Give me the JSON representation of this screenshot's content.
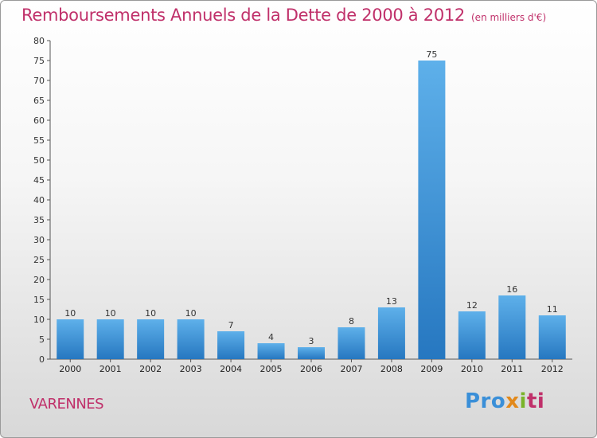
{
  "chart_data": {
    "type": "bar",
    "title": "Remboursements Annuels de la Dette de 2000 à 2012",
    "subtitle": "(en milliers d'€)",
    "categories": [
      "2000",
      "2001",
      "2002",
      "2003",
      "2004",
      "2005",
      "2006",
      "2007",
      "2008",
      "2009",
      "2010",
      "2011",
      "2012"
    ],
    "values": [
      10,
      10,
      10,
      10,
      7,
      4,
      3,
      8,
      13,
      75,
      12,
      16,
      11
    ],
    "ylim": [
      0,
      80
    ],
    "yticks": [
      0,
      5,
      10,
      15,
      20,
      25,
      30,
      35,
      40,
      45,
      50,
      55,
      60,
      65,
      70,
      75,
      80
    ],
    "grid": false,
    "data_labels": true,
    "bar_color": "#3a8fd8"
  },
  "commune": "VARENNES",
  "logo": {
    "p1": "Pro",
    "p2": "x",
    "p3": "i",
    "p4": "ti"
  },
  "colors": {
    "accent": "#c0306a"
  }
}
